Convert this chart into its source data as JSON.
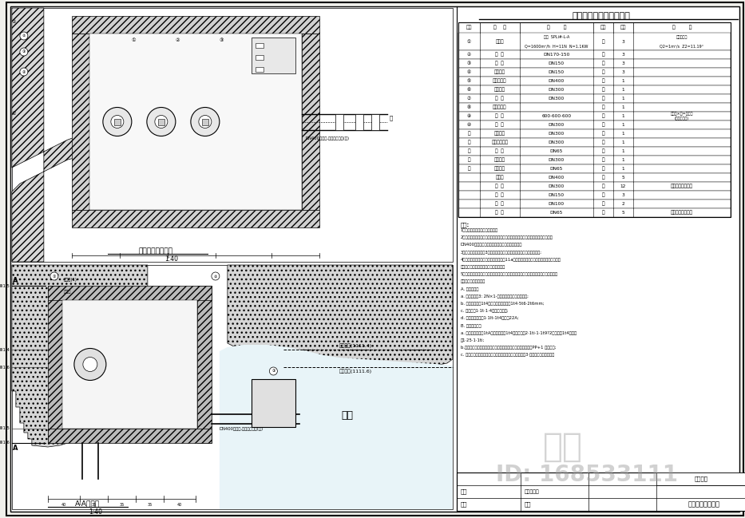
{
  "bg_color": "#ffffff",
  "border_color": "#000000",
  "title": "主要设备安装材料一览表",
  "table_headers": [
    "序号",
    "名    称",
    "规        格",
    "单位",
    "数量",
    "备        注"
  ],
  "table_rows": [
    [
      "①",
      "潜水泵",
      "型号  SPLi#-L-A\nQ=1600m³/h  H=11N  N=1.1KW",
      "台",
      "3",
      "丹友接公司\nQ2=1m³/s  Z2=11.19°"
    ],
    [
      "②",
      "蝶  管",
      "DN170-150",
      "只",
      "3",
      ""
    ],
    [
      "③",
      "蝶  阀",
      "DN150",
      "只",
      "3",
      ""
    ],
    [
      "④",
      "系统接头",
      "DN150",
      "只",
      "3",
      ""
    ],
    [
      "⑤",
      "加长丹蝶阀",
      "DN400",
      "只",
      "1",
      ""
    ],
    [
      "⑥",
      "水水汇管",
      "DN300",
      "套",
      "1",
      ""
    ],
    [
      "⑦",
      "蝶  阀",
      "DN300",
      "只",
      "1",
      ""
    ],
    [
      "⑧",
      "附空装行架",
      "",
      "台",
      "1",
      ""
    ],
    [
      "⑨",
      "件  槽",
      "600·600·600",
      "套",
      "1",
      "内止长×宽=制成允\n(门宽者材料)"
    ],
    [
      "⑩",
      "蝶  阀",
      "DN300",
      "只",
      "1",
      ""
    ],
    [
      "⑪",
      "系统接头",
      "DN300",
      "只",
      "1",
      ""
    ],
    [
      "⑫",
      "对夹式止回阀",
      "DN300",
      "只",
      "1",
      ""
    ],
    [
      "⑬",
      "蝶  阀",
      "DN65",
      "只",
      "1",
      ""
    ],
    [
      "⑭",
      "防水套管",
      "DN300",
      "只",
      "1",
      ""
    ],
    [
      "⑮",
      "防水套管",
      "DN65",
      "只",
      "1",
      ""
    ],
    [
      "",
      "水泥管",
      "DN400",
      "米",
      "5",
      ""
    ],
    [
      "",
      "钢  管",
      "DN300",
      "米",
      "12",
      "包括分叉段粗末计"
    ],
    [
      "",
      "钢  管",
      "DN150",
      "米",
      "3",
      ""
    ],
    [
      "",
      "钢  管",
      "DN100",
      "米",
      "2",
      ""
    ],
    [
      "",
      "钢  管",
      "DN65",
      "米",
      "5",
      "包括分叉段粗末计"
    ]
  ],
  "notes_title": "说明:",
  "notes": [
    "1、本图尺寸单位：均以毫米计。",
    "2、泵房内管材采用无锈钢管，水泵、阀门、管件连接处采用法兰连接，泵房进水管",
    "DN400采用水泥管，控电泵房处管道为无锈钢管。",
    "3、水泵供水机组共设3台，运使参各足设备一览表，水泵有加水变变管;",
    "4、连水泵机构底部安装支架，支架采用11a槽钢制件，并与潜水相配合，支架除锈处理",
    "后丹防锈漆和更契电刷和语系两道防周。",
    "5、水泵控制柜就地不能天然置于阻敝处，外壳采用不锈钢材质，电量通过电器动就设，",
    "电气支架、设置如下：",
    "A. 电气控制柜",
    "a. 控制方式为3: 2N×1-挡三，称挡（时挡）、手挡;",
    "b. 电控柜柜体为1t4不锈钢，外形尺寸为1t4·5t6·2t6mm;",
    "c. 控制柜为1·1t·1·4防水橡里电要;",
    "d. 展电压、电流为1·1lt-1t4，每台22A;",
    "B. 动力电度电要",
    "a. 招包时，应各询1tA，电要总长在1t4系段段内为2·1ti·1·1t9?2，总长在1t4系以上",
    "为1·25·1·1ti;",
    "b.动力电要沿主入口道路右侧电要动设立放设置号，通孔一段用PP+1 内管穿过;",
    "c. 建工中应与户外管道路外阿路系联系行，其元克域以用3·绿渡，穿域以了解渡。"
  ],
  "plan_view_label": "叠水送水泵平面图",
  "plan_view_scale": "1:40",
  "section_label": "A-A剖面图",
  "section_scale": "1:40",
  "inner_lake_label": "内湖",
  "zhile_watermark": "知乐",
  "id_watermark": "ID: 168533111",
  "drawing_title": "叠水送水泵设计图",
  "line_color": "#000000",
  "wall_hatch_color": "#888888",
  "page_bg": "#f0f0eb"
}
